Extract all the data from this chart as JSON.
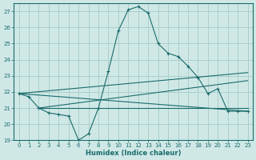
{
  "xlabel": "Humidex (Indice chaleur)",
  "bg_color": "#cfe8e6",
  "grid_color": "#aacfcc",
  "line_color": "#1a6b6b",
  "xlim": [
    -0.5,
    23.5
  ],
  "ylim": [
    19,
    27.5
  ],
  "yticks": [
    19,
    20,
    21,
    22,
    23,
    24,
    25,
    26,
    27
  ],
  "xticks": [
    0,
    1,
    2,
    3,
    4,
    5,
    6,
    7,
    8,
    9,
    10,
    11,
    12,
    13,
    14,
    15,
    16,
    17,
    18,
    19,
    20,
    21,
    22,
    23
  ],
  "series1_x": [
    0,
    1,
    2,
    3,
    4,
    5,
    6,
    7,
    8,
    9,
    10,
    11,
    12,
    13,
    14,
    15,
    16,
    17,
    18,
    19,
    20,
    21,
    22,
    23
  ],
  "series1_y": [
    21.9,
    21.7,
    21.0,
    20.7,
    20.6,
    20.5,
    19.0,
    19.4,
    21.0,
    23.3,
    25.8,
    27.1,
    27.3,
    26.9,
    25.0,
    24.4,
    24.2,
    23.6,
    22.9,
    21.9,
    22.2,
    20.8,
    20.8,
    20.8
  ],
  "line1_x": [
    0,
    23
  ],
  "line1_y": [
    21.9,
    20.8
  ],
  "line2_x": [
    0,
    23
  ],
  "line2_y": [
    21.9,
    23.2
  ],
  "line3_x": [
    2,
    23
  ],
  "line3_y": [
    21.0,
    22.7
  ],
  "line4_x": [
    2,
    23
  ],
  "line4_y": [
    21.0,
    21.0
  ]
}
